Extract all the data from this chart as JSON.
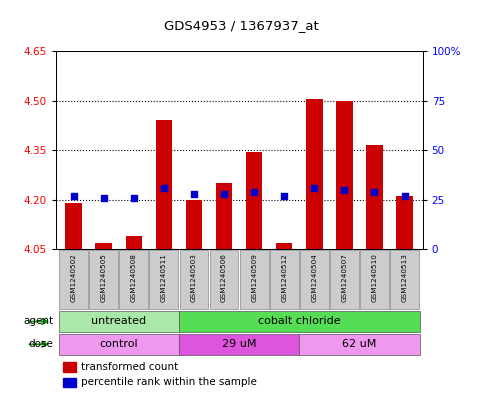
{
  "title": "GDS4953 / 1367937_at",
  "samples": [
    "GSM1240502",
    "GSM1240505",
    "GSM1240508",
    "GSM1240511",
    "GSM1240503",
    "GSM1240506",
    "GSM1240509",
    "GSM1240512",
    "GSM1240504",
    "GSM1240507",
    "GSM1240510",
    "GSM1240513"
  ],
  "transformed_count": [
    4.19,
    4.07,
    4.09,
    4.44,
    4.2,
    4.25,
    4.345,
    4.07,
    4.505,
    4.5,
    4.365,
    4.21
  ],
  "percentile_rank": [
    27,
    26,
    26,
    31,
    28,
    28,
    29,
    27,
    31,
    30,
    29,
    27
  ],
  "bar_bottom": 4.05,
  "ylim_left": [
    4.05,
    4.65
  ],
  "ylim_right": [
    0,
    100
  ],
  "yticks_left": [
    4.05,
    4.2,
    4.35,
    4.5,
    4.65
  ],
  "yticks_right": [
    0,
    25,
    50,
    75,
    100
  ],
  "ytick_labels_right": [
    "0",
    "25",
    "50",
    "75",
    "100%"
  ],
  "agent_groups": [
    {
      "label": "untreated",
      "start": 0,
      "end": 4,
      "color": "#aae8aa"
    },
    {
      "label": "cobalt chloride",
      "start": 4,
      "end": 12,
      "color": "#55dd55"
    }
  ],
  "dose_groups": [
    {
      "label": "control",
      "start": 0,
      "end": 4,
      "color": "#ee99ee"
    },
    {
      "label": "29 uM",
      "start": 4,
      "end": 8,
      "color": "#dd55dd"
    },
    {
      "label": "62 uM",
      "start": 8,
      "end": 12,
      "color": "#ee99ee"
    }
  ],
  "bar_color": "#cc0000",
  "dot_color": "#0000cc",
  "plot_bg_color": "#ffffff",
  "legend_red_label": "transformed count",
  "legend_blue_label": "percentile rank within the sample",
  "arrow_color": "#009900",
  "sample_box_color": "#cccccc",
  "sample_box_edge": "#888888"
}
